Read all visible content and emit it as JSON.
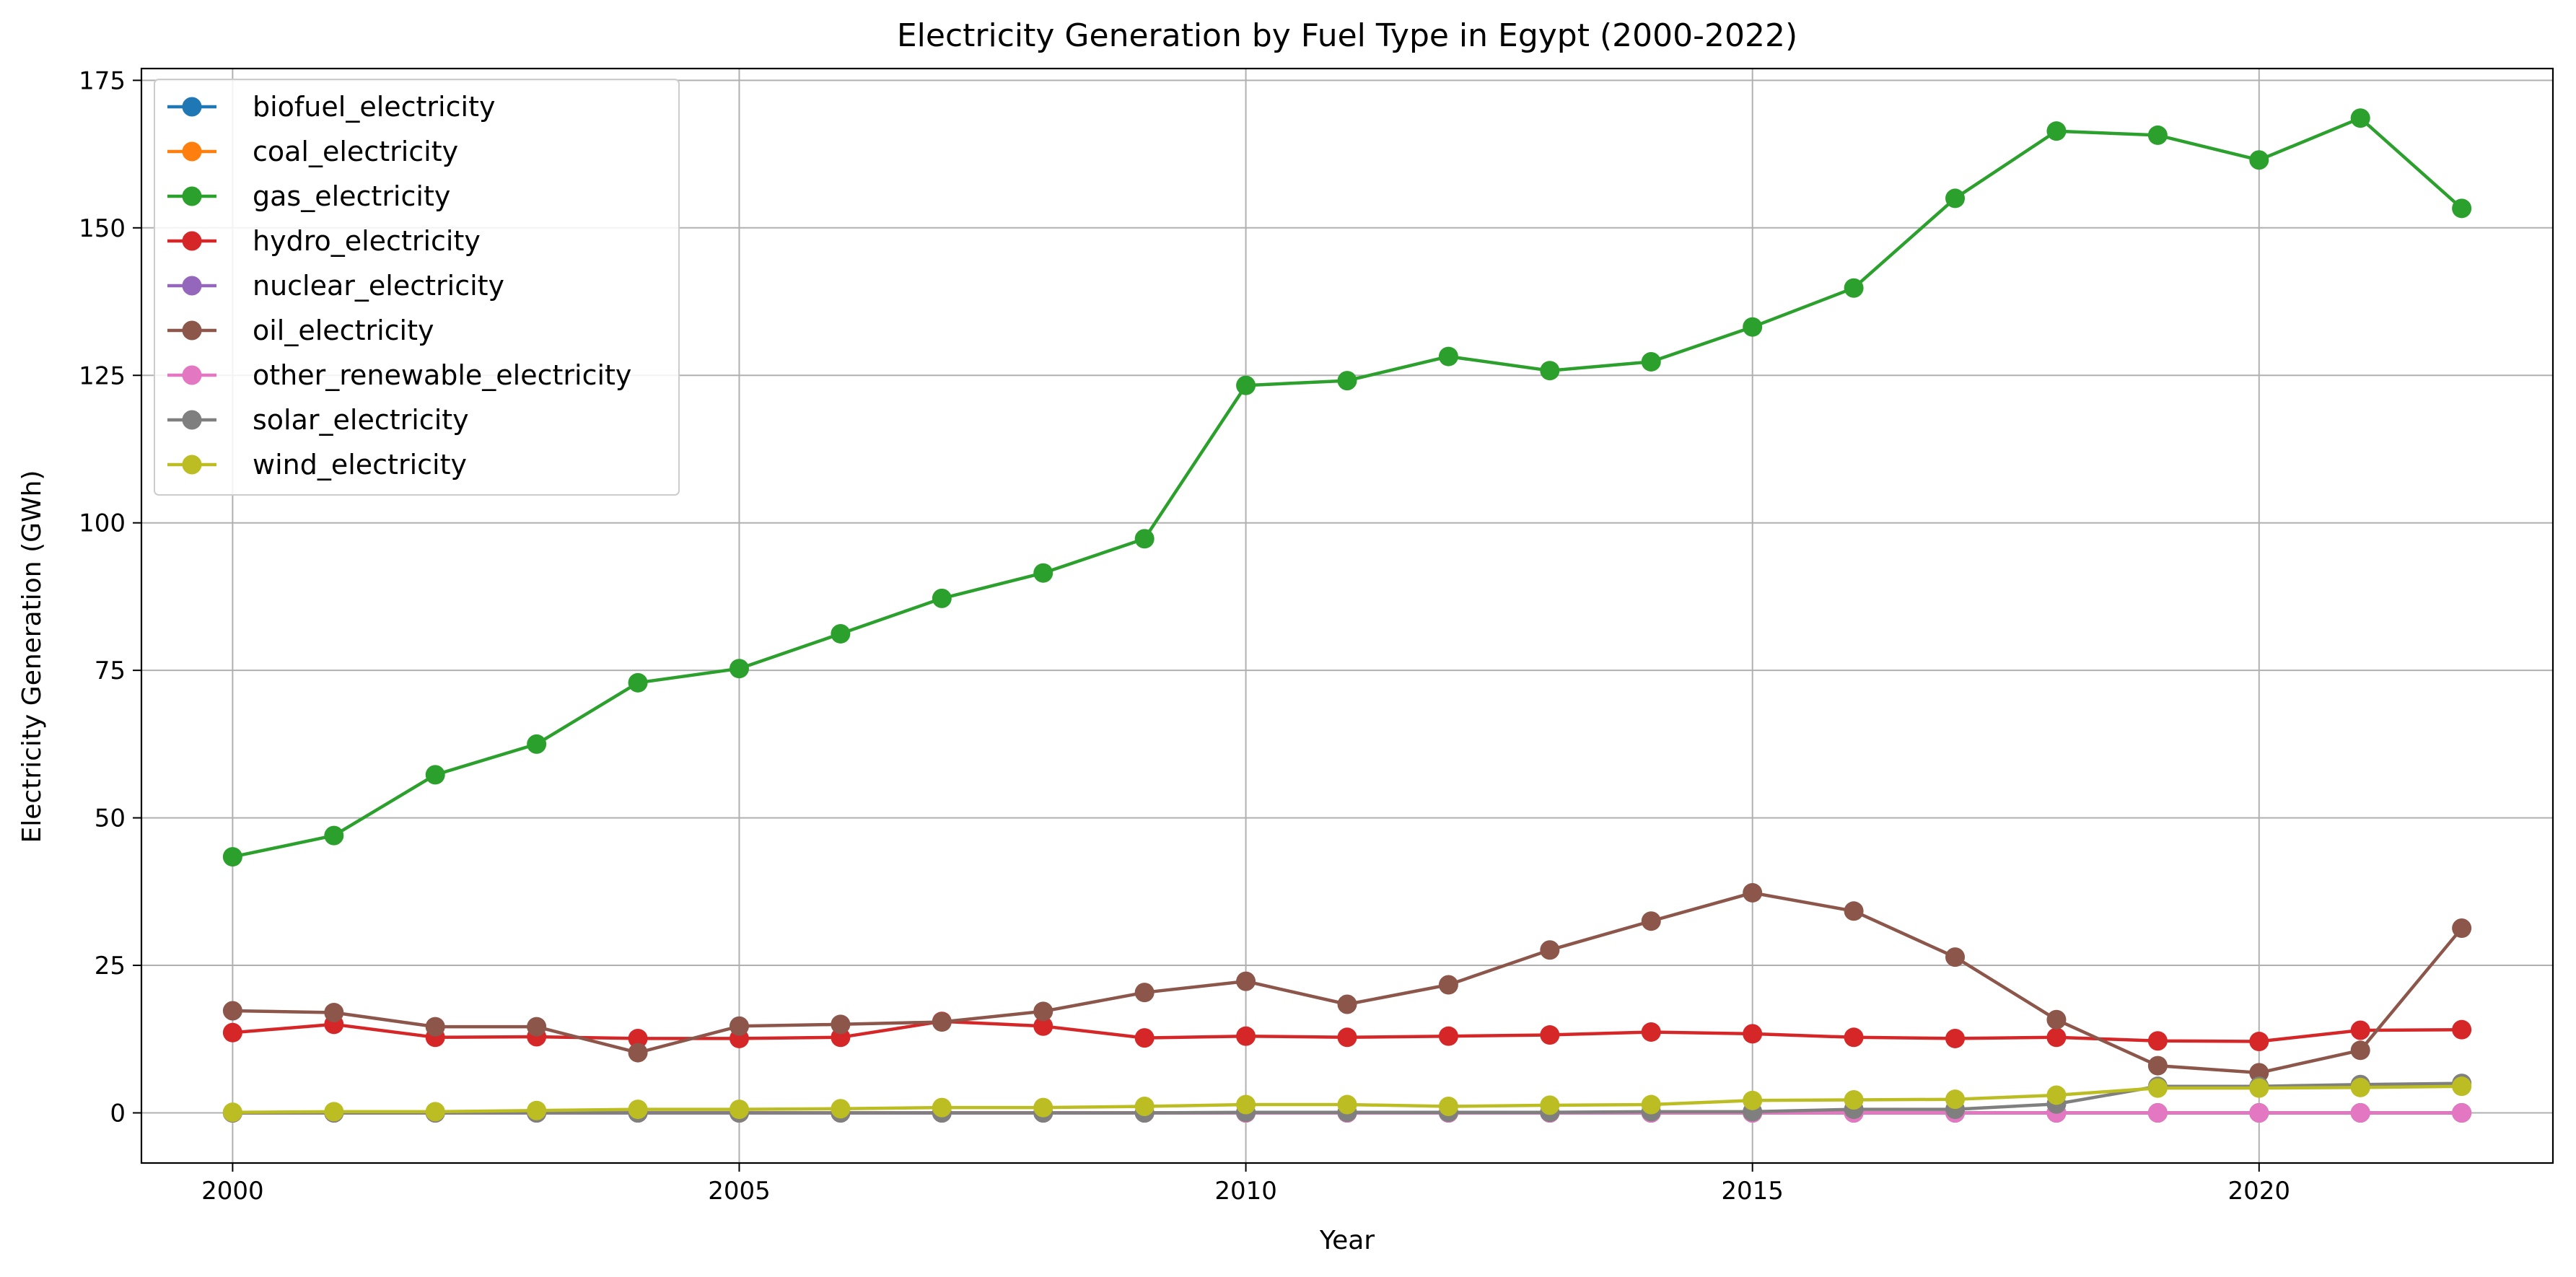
{
  "chart_data": {
    "type": "line",
    "title": "Electricity Generation by Fuel Type in Egypt (2000-2022)",
    "xlabel": "Year",
    "ylabel": "Electricity Generation (GWh)",
    "xlim": [
      1999.1,
      2022.9
    ],
    "ylim": [
      -8.5,
      177
    ],
    "xticks": [
      2000,
      2005,
      2010,
      2015,
      2020
    ],
    "yticks": [
      0,
      25,
      50,
      75,
      100,
      125,
      150,
      175
    ],
    "grid": true,
    "legend_position": "top-left",
    "x": [
      2000,
      2001,
      2002,
      2003,
      2004,
      2005,
      2006,
      2007,
      2008,
      2009,
      2010,
      2011,
      2012,
      2013,
      2014,
      2015,
      2016,
      2017,
      2018,
      2019,
      2020,
      2021,
      2022
    ],
    "series": [
      {
        "name": "biofuel_electricity",
        "color": "#1f77b4",
        "values": [
          0,
          0,
          0,
          0,
          0,
          0,
          0,
          0,
          0,
          0,
          0,
          0,
          0,
          0,
          0,
          0,
          0,
          0,
          0,
          0,
          0,
          0,
          0
        ]
      },
      {
        "name": "coal_electricity",
        "color": "#ff7f0e",
        "values": [
          0,
          0,
          0,
          0,
          0,
          0,
          0,
          0,
          0,
          0,
          0,
          0,
          0,
          0,
          0,
          0,
          0,
          0,
          0,
          0,
          0,
          0,
          0
        ]
      },
      {
        "name": "gas_electricity",
        "color": "#2ca02c",
        "values": [
          43.4,
          47.0,
          57.3,
          62.5,
          72.9,
          75.3,
          81.2,
          87.2,
          91.5,
          97.3,
          123.3,
          124.1,
          128.2,
          125.8,
          127.3,
          133.2,
          139.8,
          155.0,
          166.4,
          165.7,
          161.5,
          168.6,
          153.3
        ]
      },
      {
        "name": "hydro_electricity",
        "color": "#d62728",
        "values": [
          13.6,
          15.0,
          12.8,
          12.9,
          12.6,
          12.6,
          12.8,
          15.5,
          14.7,
          12.7,
          13.0,
          12.8,
          13.0,
          13.2,
          13.7,
          13.4,
          12.8,
          12.6,
          12.8,
          12.2,
          12.1,
          14.0,
          14.1
        ]
      },
      {
        "name": "nuclear_electricity",
        "color": "#9467bd",
        "values": [
          0,
          0,
          0,
          0,
          0,
          0,
          0,
          0,
          0,
          0,
          0,
          0,
          0,
          0,
          0,
          0,
          0,
          0,
          0,
          0,
          0,
          0,
          0
        ]
      },
      {
        "name": "oil_electricity",
        "color": "#8c564b",
        "values": [
          17.3,
          17.0,
          14.6,
          14.6,
          10.2,
          14.7,
          15.0,
          15.4,
          17.2,
          20.4,
          22.3,
          18.4,
          21.7,
          27.6,
          32.5,
          37.3,
          34.2,
          26.4,
          15.8,
          8.0,
          6.8,
          10.6,
          31.3
        ]
      },
      {
        "name": "other_renewable_electricity",
        "color": "#e377c2",
        "values": [
          0,
          0,
          0,
          0,
          0,
          0,
          0,
          0,
          0,
          0,
          0,
          0,
          0,
          0,
          0,
          0,
          0,
          0,
          0,
          0,
          0,
          0,
          0
        ]
      },
      {
        "name": "solar_electricity",
        "color": "#7f7f7f",
        "values": [
          0,
          0,
          0,
          0,
          0,
          0,
          0,
          0,
          0,
          0,
          0.1,
          0.1,
          0.1,
          0.1,
          0.2,
          0.2,
          0.6,
          0.6,
          1.5,
          4.5,
          4.5,
          4.8,
          5.0
        ]
      },
      {
        "name": "wind_electricity",
        "color": "#bcbd22",
        "values": [
          0.1,
          0.2,
          0.2,
          0.4,
          0.6,
          0.6,
          0.7,
          0.9,
          0.9,
          1.1,
          1.4,
          1.4,
          1.1,
          1.3,
          1.4,
          2.1,
          2.2,
          2.3,
          3.0,
          4.2,
          4.2,
          4.3,
          4.5
        ]
      }
    ]
  }
}
